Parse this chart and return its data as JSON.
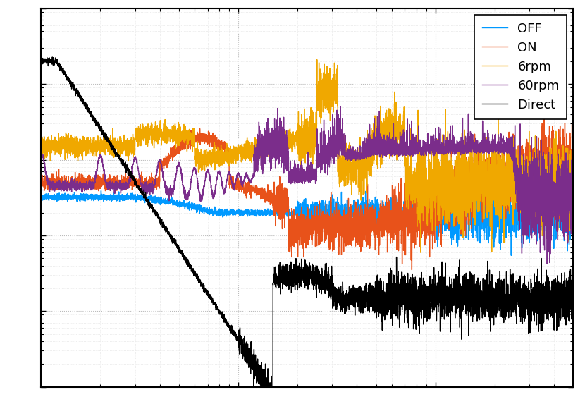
{
  "legend_labels": [
    "OFF",
    "ON",
    "6rpm",
    "60rpm",
    "Direct"
  ],
  "colors": [
    "#0099FF",
    "#E8521A",
    "#F0A800",
    "#7B2D8B",
    "#000000"
  ],
  "linewidths": [
    1.0,
    1.0,
    1.0,
    1.0,
    1.0
  ],
  "background_color": "#ffffff",
  "grid_color": "#cccccc",
  "figsize": [
    8.3,
    5.9
  ],
  "dpi": 100
}
